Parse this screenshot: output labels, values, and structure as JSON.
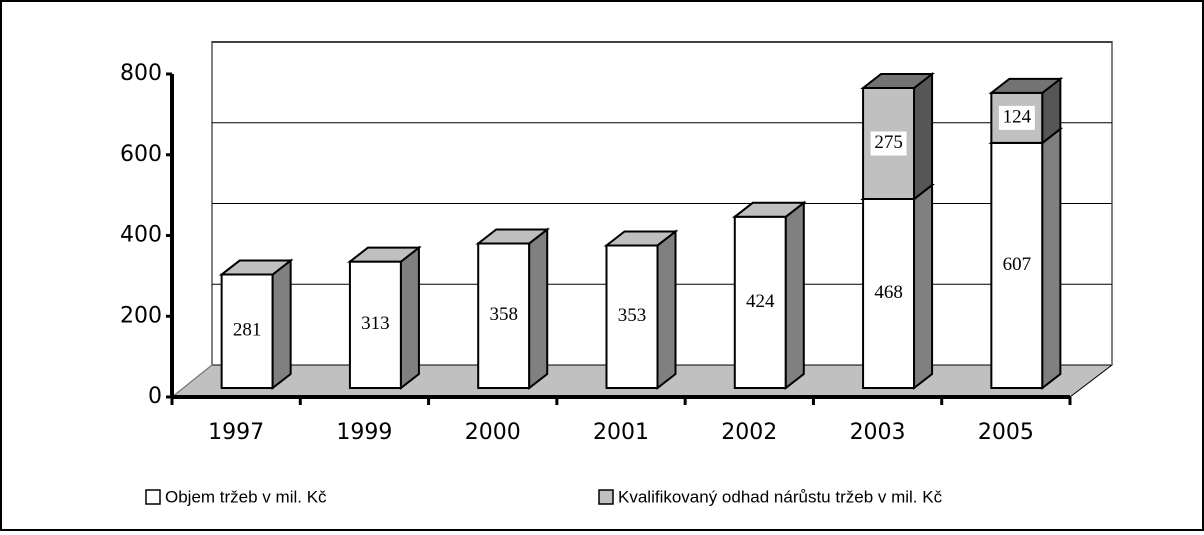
{
  "chart_data": {
    "type": "bar3d_stacked",
    "categories": [
      "1997",
      "1999",
      "2000",
      "2001",
      "2002",
      "2003",
      "2005"
    ],
    "series": [
      {
        "name": "Objem tržeb v mil. Kč",
        "color": "#ffffff",
        "values": [
          281,
          313,
          358,
          353,
          424,
          468,
          607
        ]
      },
      {
        "name": "Kvalifikovaný odhad nárůstu tržeb v mil. Kč",
        "color": "#c0c0c0",
        "values": [
          null,
          null,
          null,
          null,
          null,
          275,
          124
        ]
      }
    ],
    "ylim": [
      0,
      800
    ],
    "yticks": [
      0,
      200,
      400,
      600,
      800
    ],
    "grid": true
  }
}
